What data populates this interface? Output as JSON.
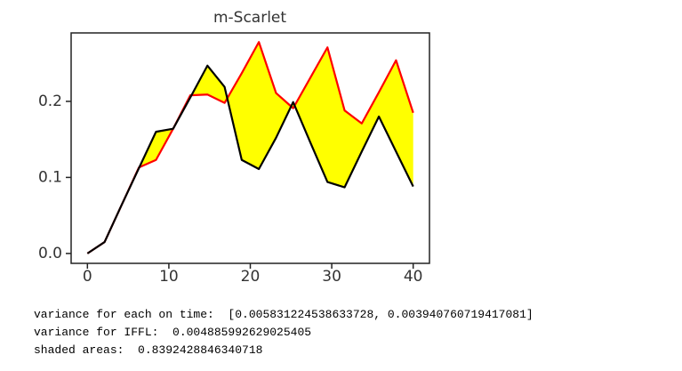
{
  "chart_data": {
    "type": "line",
    "title": "m-Scarlet",
    "x": [
      0,
      2.105,
      4.211,
      6.316,
      8.421,
      10.526,
      12.632,
      14.737,
      16.842,
      18.947,
      21.053,
      23.158,
      25.263,
      27.368,
      29.474,
      31.579,
      33.684,
      35.789,
      37.895,
      40
    ],
    "series": [
      {
        "color": "#ff0000",
        "values": [
          0.0,
          0.015,
          0.064,
          0.113,
          0.123,
          0.164,
          0.208,
          0.209,
          0.198,
          0.237,
          0.278,
          0.211,
          0.191,
          0.231,
          0.271,
          0.188,
          0.171,
          0.212,
          0.254,
          0.185
        ]
      },
      {
        "color": "#000000",
        "values": [
          0.0,
          0.015,
          0.064,
          0.112,
          0.16,
          0.164,
          0.205,
          0.247,
          0.219,
          0.123,
          0.111,
          0.152,
          0.199,
          0.146,
          0.094,
          0.087,
          0.134,
          0.18,
          0.134,
          0.088
        ]
      }
    ],
    "fill_color": "#ffff00",
    "xlim": [
      -2,
      42
    ],
    "ylim": [
      -0.013,
      0.29
    ],
    "xticks": [
      0,
      10,
      20,
      30,
      40
    ],
    "yticks": [
      {
        "value": 0,
        "label": "0.0"
      },
      0.1,
      0.2
    ]
  },
  "output_lines": [
    "variance for each on time:  [0.005831224538633728, 0.003940760719417081]",
    "variance for IFFL:  0.004885992629025405",
    "shaded areas:  0.8392428846340718"
  ]
}
